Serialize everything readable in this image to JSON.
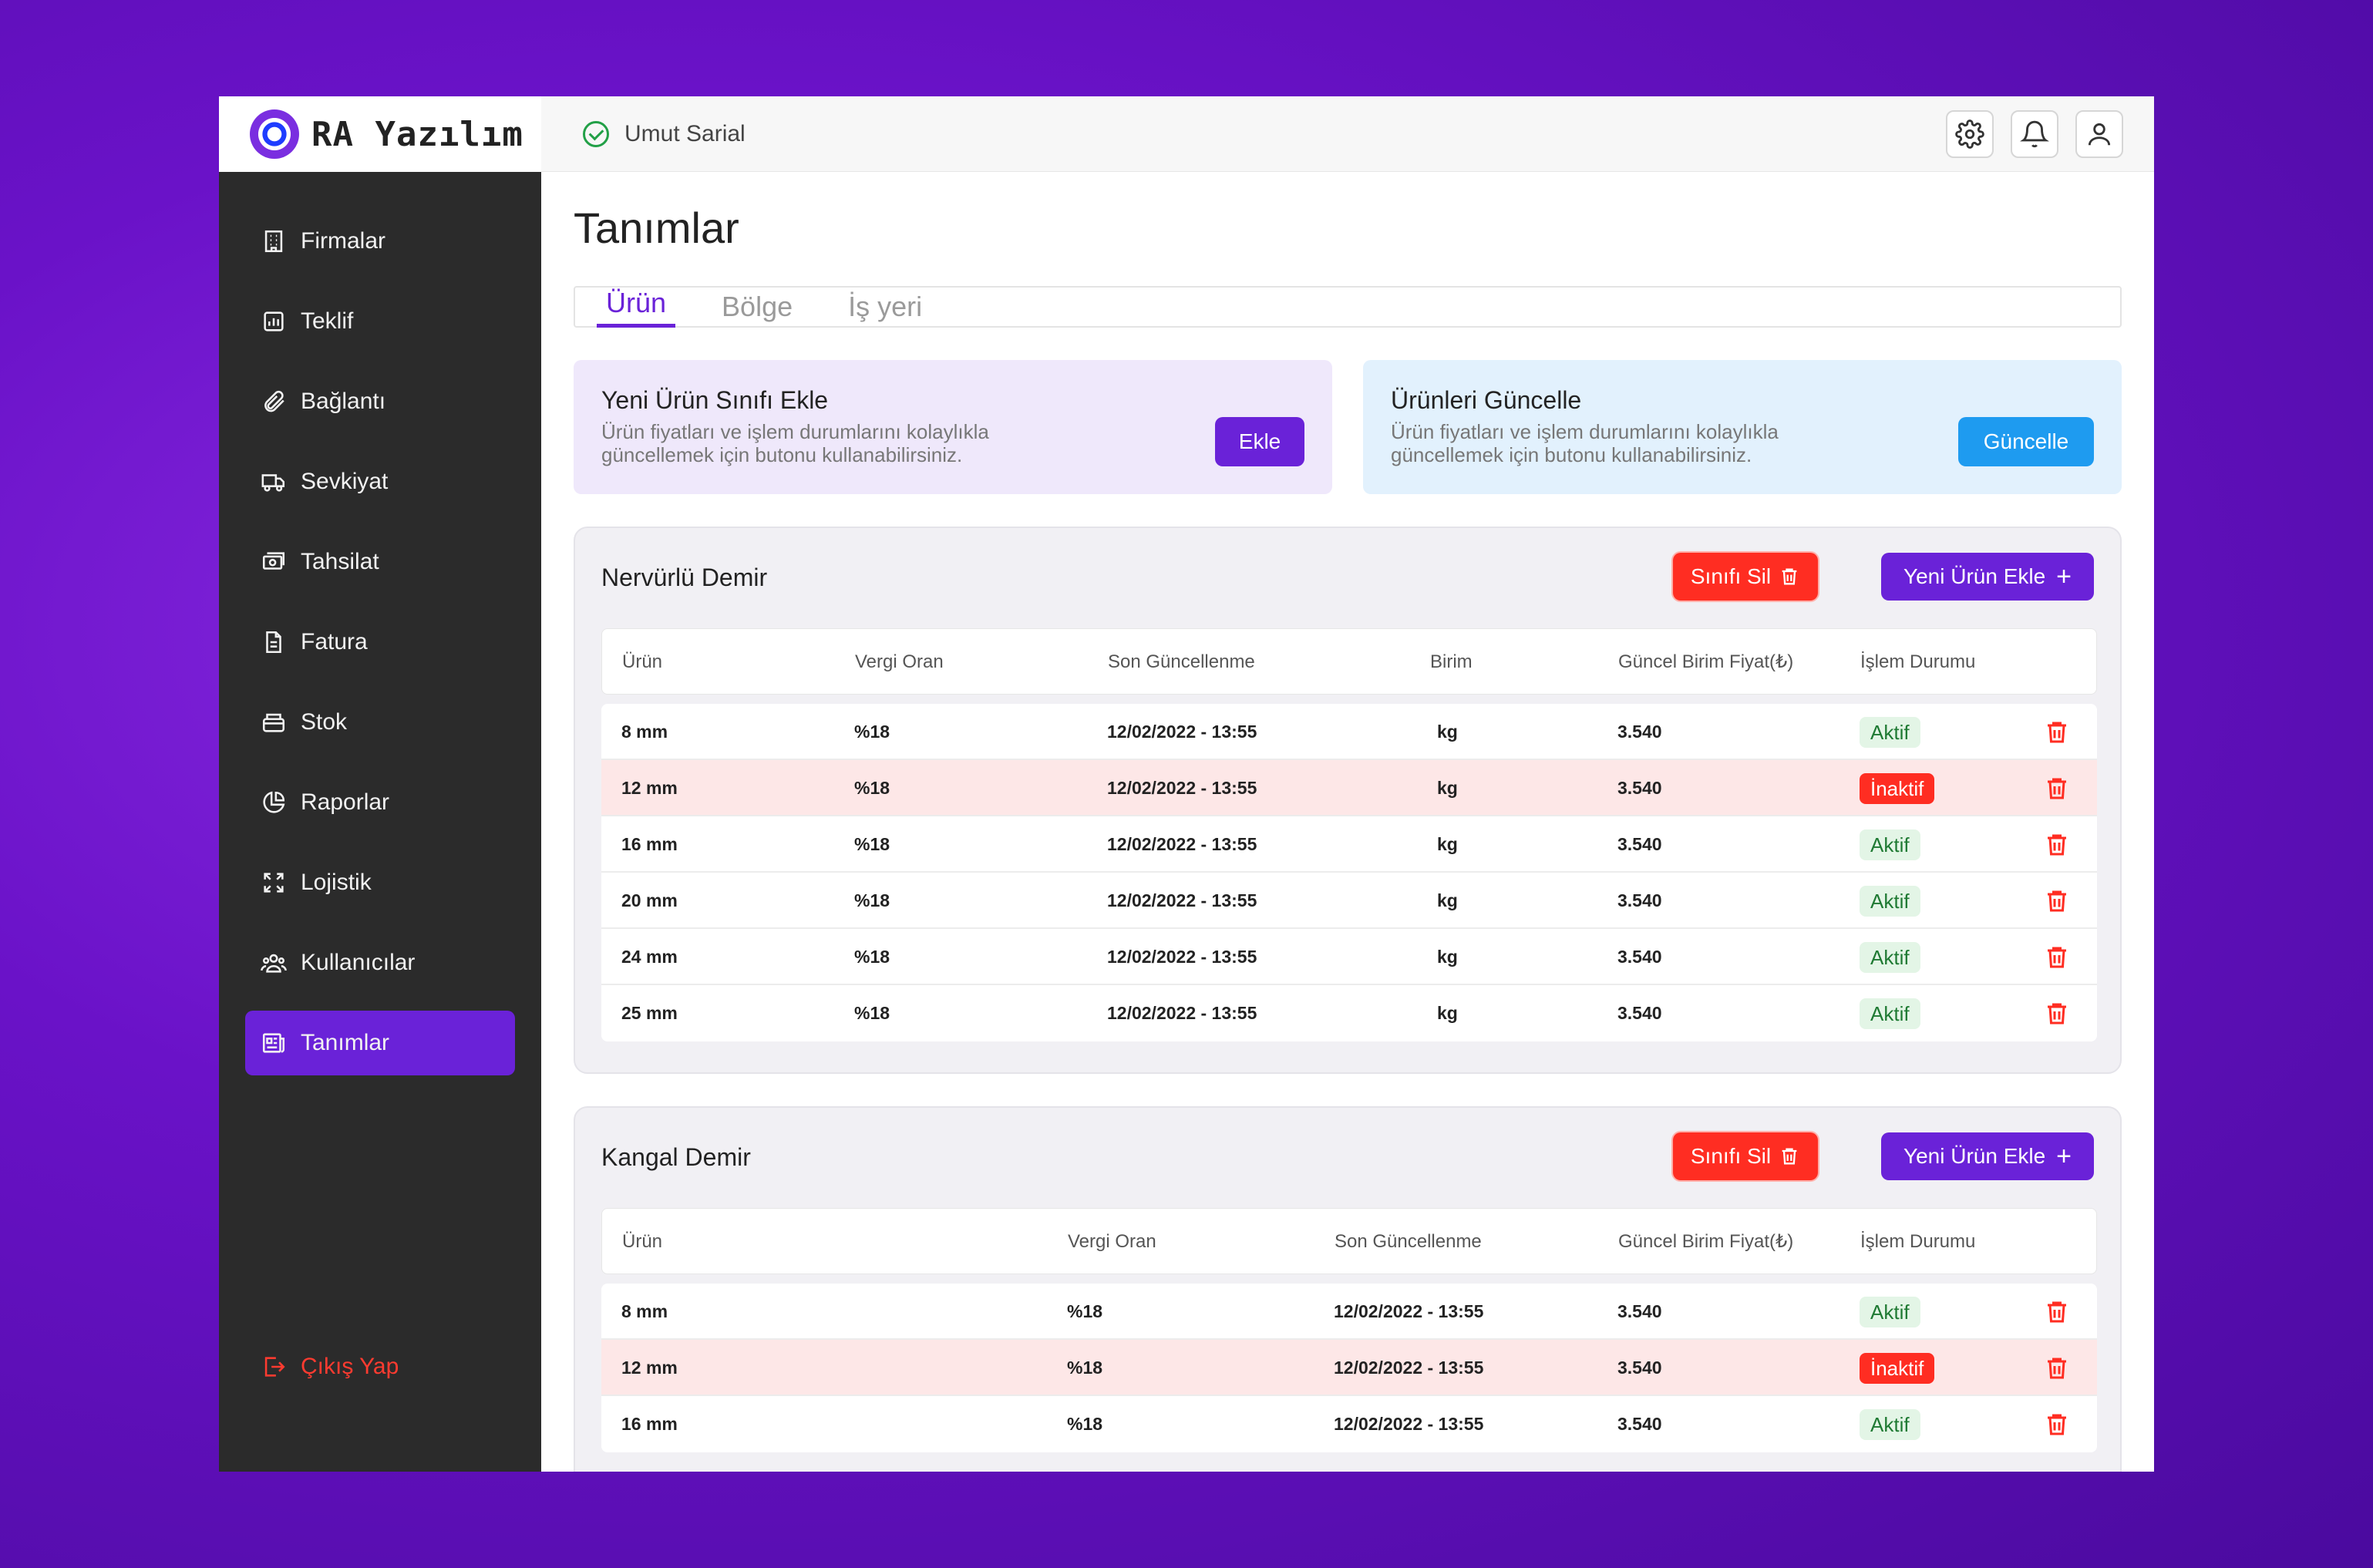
{
  "app": {
    "logo_text": "RA Yazılım"
  },
  "header": {
    "user_name": "Umut Sarial"
  },
  "sidebar": {
    "items": [
      {
        "label": "Firmalar",
        "icon": "building-icon"
      },
      {
        "label": "Teklif",
        "icon": "chart-icon"
      },
      {
        "label": "Bağlantı",
        "icon": "paperclip-icon"
      },
      {
        "label": "Sevkiyat",
        "icon": "truck-icon"
      },
      {
        "label": "Tahsilat",
        "icon": "money-icon"
      },
      {
        "label": "Fatura",
        "icon": "document-icon"
      },
      {
        "label": "Stok",
        "icon": "box-icon"
      },
      {
        "label": "Raporlar",
        "icon": "pie-icon"
      },
      {
        "label": "Lojistik",
        "icon": "expand-icon"
      },
      {
        "label": "Kullanıcılar",
        "icon": "users-icon"
      },
      {
        "label": "Tanımlar",
        "icon": "newspaper-icon",
        "active": true
      }
    ],
    "logout": "Çıkış Yap"
  },
  "page": {
    "title": "Tanımlar",
    "tabs": [
      "Ürün",
      "Bölge",
      "İş yeri"
    ],
    "active_tab": "Ürün"
  },
  "promos": {
    "add_class": {
      "title": "Yeni Ürün Sınıfı Ekle",
      "desc": "Ürün fiyatları ve işlem durumlarını kolaylıkla güncellemek için butonu kullanabilirsiniz.",
      "button": "Ekle"
    },
    "update": {
      "title": "Ürünleri Güncelle",
      "desc": "Ürün fiyatları ve işlem durumlarını kolaylıkla güncellemek için butonu kullanabilirsiniz.",
      "button": "Güncelle"
    }
  },
  "buttons": {
    "delete_class": "Sınıfı Sil",
    "add_product": "Yeni Ürün Ekle"
  },
  "groups": [
    {
      "title": "Nervürlü Demir",
      "headers": [
        "Ürün",
        "Vergi Oran",
        "Son Güncellenme",
        "Birim",
        "Güncel Birim Fiyat(₺)",
        "İşlem Durumu"
      ],
      "rows": [
        {
          "urun": "8 mm",
          "vergi": "%18",
          "tarih": "12/02/2022 - 13:55",
          "birim": "kg",
          "fiyat": "3.540",
          "durum": "Aktif"
        },
        {
          "urun": "12 mm",
          "vergi": "%18",
          "tarih": "12/02/2022 - 13:55",
          "birim": "kg",
          "fiyat": "3.540",
          "durum": "İnaktif"
        },
        {
          "urun": "16 mm",
          "vergi": "%18",
          "tarih": "12/02/2022 - 13:55",
          "birim": "kg",
          "fiyat": "3.540",
          "durum": "Aktif"
        },
        {
          "urun": "20 mm",
          "vergi": "%18",
          "tarih": "12/02/2022 - 13:55",
          "birim": "kg",
          "fiyat": "3.540",
          "durum": "Aktif"
        },
        {
          "urun": "24 mm",
          "vergi": "%18",
          "tarih": "12/02/2022 - 13:55",
          "birim": "kg",
          "fiyat": "3.540",
          "durum": "Aktif"
        },
        {
          "urun": "25 mm",
          "vergi": "%18",
          "tarih": "12/02/2022 - 13:55",
          "birim": "kg",
          "fiyat": "3.540",
          "durum": "Aktif"
        }
      ]
    },
    {
      "title": "Kangal Demir",
      "headers": [
        "Ürün",
        "Vergi Oran",
        "Son Güncellenme",
        "Güncel Birim Fiyat(₺)",
        "İşlem Durumu"
      ],
      "rows": [
        {
          "urun": "8 mm",
          "vergi": "%18",
          "tarih": "12/02/2022 - 13:55",
          "fiyat": "3.540",
          "durum": "Aktif"
        },
        {
          "urun": "12 mm",
          "vergi": "%18",
          "tarih": "12/02/2022 - 13:55",
          "fiyat": "3.540",
          "durum": "İnaktif"
        },
        {
          "urun": "16 mm",
          "vergi": "%18",
          "tarih": "12/02/2022 - 13:55",
          "fiyat": "3.540",
          "durum": "Aktif"
        }
      ]
    }
  ],
  "colors": {
    "accent": "#6a22d8",
    "danger": "#ff2d22",
    "info": "#1e9bf0",
    "sidebar": "#2b2b2b"
  }
}
